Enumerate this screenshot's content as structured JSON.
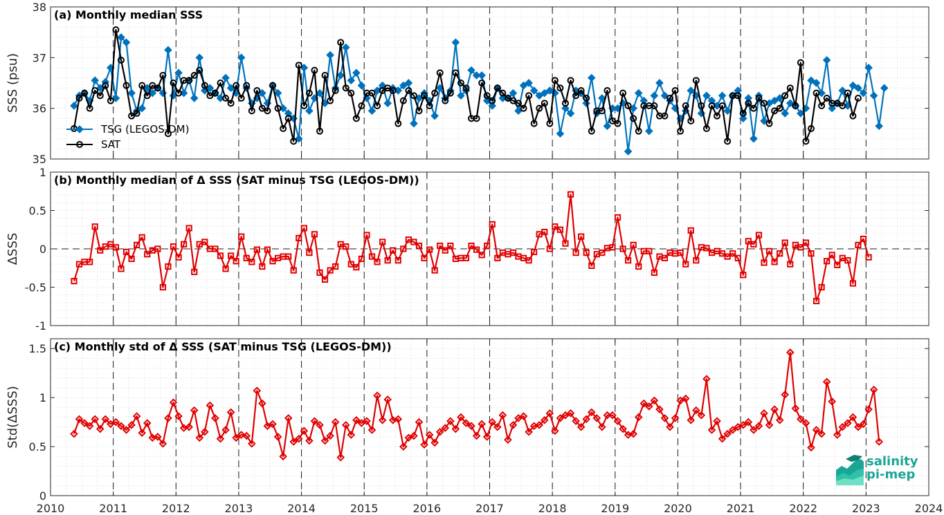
{
  "logo": {
    "line1": "salinity",
    "line2": "pi-mep"
  },
  "x_axis": {
    "ticks": [
      "2010",
      "2011",
      "2012",
      "2013",
      "2014",
      "2015",
      "2016",
      "2017",
      "2018",
      "2019",
      "2020",
      "2021",
      "2022",
      "2023",
      "2024"
    ]
  },
  "colors": {
    "tsg": "#0072BD",
    "sat": "#000000",
    "delta": "#E00000",
    "grid": "#d9d9d9"
  },
  "chart_data": [
    {
      "type": "line",
      "title": "(a) Monthly median SSS",
      "xlabel": "",
      "ylabel": "SSS (psu)",
      "xlim": [
        2010,
        2024
      ],
      "ylim": [
        35,
        38
      ],
      "yticks": [
        "35",
        "36",
        "37",
        "38"
      ],
      "legend_position": "left",
      "x_start": 2010.375,
      "x_step": 0.08333,
      "series": [
        {
          "name": "TSG (LEGOS-DM)",
          "marker": "diamond",
          "color": "#0072BD",
          "values": [
            36.05,
            36.25,
            36.3,
            36.15,
            36.55,
            36.4,
            36.52,
            36.8,
            36.2,
            37.4,
            37.3,
            36.3,
            35.95,
            36.0,
            36.4,
            36.3,
            36.4,
            36.3,
            37.15,
            36.25,
            36.7,
            36.3,
            36.55,
            36.2,
            37.0,
            36.35,
            36.4,
            36.3,
            36.2,
            36.6,
            36.4,
            36.3,
            37.0,
            36.4,
            36.1,
            36.2,
            36.3,
            36.1,
            36.45,
            36.3,
            36.0,
            35.9,
            35.8,
            35.4,
            36.8,
            35.95,
            36.2,
            36.3,
            36.1,
            37.05,
            36.4,
            36.65,
            37.2,
            36.55,
            36.7,
            36.45,
            36.2,
            35.95,
            36.35,
            36.45,
            36.1,
            36.4,
            36.35,
            36.45,
            36.5,
            35.7,
            36.2,
            36.3,
            36.15,
            35.85,
            36.4,
            36.2,
            36.35,
            37.3,
            36.25,
            36.35,
            36.75,
            36.65,
            36.65,
            36.15,
            36.05,
            36.4,
            36.2,
            36.2,
            36.3,
            35.95,
            36.45,
            36.5,
            36.35,
            36.25,
            36.3,
            36.35,
            36.3,
            35.5,
            36.0,
            35.9,
            36.35,
            36.3,
            36.1,
            36.6,
            35.9,
            36.2,
            35.65,
            36.0,
            36.0,
            36.1,
            35.15,
            36.0,
            36.3,
            36.15,
            35.55,
            36.25,
            36.5,
            36.25,
            36.15,
            36.0,
            35.8,
            35.95,
            36.35,
            36.25,
            35.9,
            36.25,
            36.15,
            36.05,
            36.25,
            35.95,
            36.25,
            36.35,
            35.8,
            36.2,
            35.4,
            36.25,
            35.75,
            36.1,
            36.15,
            36.2,
            35.9,
            36.1,
            36.05,
            35.9,
            36.0,
            36.55,
            36.5,
            36.3,
            36.95,
            36.0,
            36.1,
            36.35,
            36.05,
            36.45,
            36.4,
            36.3,
            36.8,
            36.25,
            35.65,
            36.4
          ]
        },
        {
          "name": "SAT",
          "marker": "circle",
          "color": "#000000",
          "values": [
            35.6,
            36.2,
            36.3,
            36.0,
            36.35,
            36.25,
            36.45,
            36.15,
            37.55,
            36.95,
            36.45,
            35.85,
            35.9,
            36.45,
            36.25,
            36.45,
            36.4,
            36.65,
            35.5,
            36.5,
            36.3,
            36.55,
            36.55,
            36.65,
            36.75,
            36.45,
            36.25,
            36.3,
            36.5,
            36.2,
            36.1,
            36.45,
            36.2,
            36.45,
            35.95,
            36.35,
            36.0,
            35.95,
            36.45,
            36.0,
            35.6,
            35.8,
            35.35,
            36.85,
            36.05,
            36.3,
            36.75,
            35.55,
            36.65,
            36.15,
            36.35,
            37.3,
            36.4,
            36.3,
            35.8,
            36.05,
            36.3,
            36.3,
            36.05,
            36.35,
            36.4,
            36.35,
            35.7,
            36.15,
            36.35,
            36.25,
            35.95,
            36.25,
            36.05,
            36.3,
            36.7,
            36.15,
            36.3,
            36.7,
            36.5,
            36.4,
            35.8,
            35.8,
            36.5,
            36.25,
            36.15,
            36.4,
            36.3,
            36.2,
            36.15,
            36.1,
            36.0,
            36.25,
            35.7,
            36.0,
            36.1,
            35.7,
            36.55,
            36.4,
            36.1,
            36.55,
            36.25,
            36.35,
            36.2,
            35.55,
            35.95,
            35.95,
            36.35,
            35.75,
            35.7,
            36.3,
            36.05,
            35.8,
            35.55,
            36.05,
            36.05,
            36.05,
            35.85,
            35.85,
            36.2,
            36.35,
            35.55,
            36.05,
            35.75,
            36.55,
            36.05,
            35.6,
            36.05,
            35.85,
            36.05,
            35.35,
            36.25,
            36.25,
            35.9,
            36.1,
            36.0,
            36.2,
            36.1,
            35.7,
            35.95,
            36.0,
            36.25,
            36.4,
            36.05,
            36.9,
            35.35,
            35.6,
            36.3,
            36.05,
            36.2,
            36.1,
            36.1,
            36.05,
            36.3,
            35.85,
            36.2
          ]
        }
      ]
    },
    {
      "type": "line",
      "title": "(b) Monthly median of Δ SSS (SAT minus TSG (LEGOS-DM))",
      "xlabel": "",
      "ylabel": "ΔSSS",
      "xlim": [
        2010,
        2024
      ],
      "ylim": [
        -1,
        1
      ],
      "yticks": [
        "-1",
        "-0.5",
        "0",
        "0.5",
        "1"
      ],
      "zero_line": true,
      "x_start": 2010.375,
      "x_step": 0.08333,
      "series": [
        {
          "marker": "square",
          "color": "#E00000",
          "values": [
            -0.42,
            -0.2,
            -0.17,
            -0.17,
            0.29,
            -0.02,
            0.03,
            0.06,
            0.02,
            -0.26,
            -0.04,
            -0.13,
            0.05,
            0.15,
            -0.07,
            -0.02,
            0.0,
            -0.5,
            -0.23,
            0.03,
            -0.11,
            0.06,
            0.27,
            -0.3,
            0.06,
            0.09,
            0.0,
            0.0,
            -0.09,
            -0.26,
            -0.09,
            -0.16,
            0.16,
            -0.12,
            -0.17,
            -0.01,
            -0.23,
            -0.01,
            -0.16,
            -0.12,
            -0.1,
            -0.1,
            -0.28,
            0.14,
            0.27,
            -0.05,
            0.19,
            -0.31,
            -0.4,
            -0.28,
            -0.23,
            0.06,
            0.03,
            -0.2,
            -0.24,
            -0.13,
            0.18,
            -0.1,
            -0.17,
            0.09,
            -0.15,
            -0.02,
            -0.15,
            0.0,
            0.12,
            0.09,
            0.04,
            -0.12,
            -0.01,
            -0.28,
            0.04,
            -0.02,
            0.04,
            -0.13,
            -0.12,
            -0.12,
            0.04,
            -0.01,
            -0.08,
            0.04,
            0.32,
            -0.12,
            -0.05,
            -0.07,
            -0.05,
            -0.1,
            -0.12,
            -0.15,
            -0.04,
            0.19,
            0.22,
            0.0,
            0.29,
            0.25,
            0.07,
            0.71,
            -0.05,
            0.16,
            -0.05,
            -0.22,
            -0.07,
            -0.05,
            0.01,
            0.02,
            0.41,
            0.0,
            -0.15,
            0.05,
            -0.23,
            -0.03,
            -0.03,
            -0.31,
            -0.1,
            -0.12,
            -0.05,
            -0.06,
            -0.05,
            -0.2,
            0.24,
            -0.15,
            0.02,
            0.01,
            -0.05,
            -0.03,
            -0.06,
            -0.1,
            -0.06,
            -0.12,
            -0.34,
            0.1,
            0.06,
            0.18,
            -0.18,
            -0.03,
            -0.17,
            -0.06,
            0.08,
            -0.2,
            0.05,
            0.02,
            0.08,
            -0.06,
            -0.68,
            -0.5,
            -0.16,
            -0.08,
            -0.21,
            -0.12,
            -0.15,
            -0.45,
            0.05,
            0.13,
            -0.11
          ]
        }
      ]
    },
    {
      "type": "line",
      "title": "(c) Monthly std of Δ SSS (SAT minus TSG (LEGOS-DM))",
      "xlabel": "",
      "ylabel": "Std(ΔSSS)",
      "xlim": [
        2010,
        2024
      ],
      "ylim": [
        0,
        1.6
      ],
      "yticks": [
        "0",
        "0.5",
        "1",
        "1.5"
      ],
      "x_start": 2010.375,
      "x_step": 0.08333,
      "series": [
        {
          "marker": "diamond",
          "color": "#E00000",
          "values": [
            0.63,
            0.78,
            0.74,
            0.71,
            0.78,
            0.68,
            0.78,
            0.73,
            0.75,
            0.71,
            0.67,
            0.72,
            0.81,
            0.64,
            0.74,
            0.59,
            0.6,
            0.53,
            0.79,
            0.95,
            0.81,
            0.69,
            0.7,
            0.87,
            0.59,
            0.65,
            0.92,
            0.79,
            0.58,
            0.67,
            0.85,
            0.59,
            0.62,
            0.61,
            0.53,
            1.07,
            0.94,
            0.71,
            0.73,
            0.6,
            0.4,
            0.79,
            0.55,
            0.58,
            0.66,
            0.56,
            0.76,
            0.72,
            0.56,
            0.61,
            0.75,
            0.39,
            0.72,
            0.62,
            0.77,
            0.74,
            0.76,
            0.67,
            1.02,
            0.77,
            0.98,
            0.77,
            0.78,
            0.5,
            0.59,
            0.61,
            0.75,
            0.52,
            0.62,
            0.54,
            0.65,
            0.69,
            0.76,
            0.68,
            0.8,
            0.74,
            0.71,
            0.61,
            0.73,
            0.6,
            0.75,
            0.7,
            0.82,
            0.57,
            0.72,
            0.79,
            0.81,
            0.65,
            0.71,
            0.72,
            0.77,
            0.84,
            0.66,
            0.79,
            0.82,
            0.84,
            0.76,
            0.7,
            0.78,
            0.85,
            0.79,
            0.7,
            0.82,
            0.82,
            0.76,
            0.68,
            0.62,
            0.63,
            0.8,
            0.94,
            0.91,
            0.97,
            0.88,
            0.79,
            0.7,
            0.79,
            0.97,
            0.99,
            0.77,
            0.87,
            0.82,
            1.19,
            0.67,
            0.76,
            0.58,
            0.63,
            0.67,
            0.7,
            0.72,
            0.75,
            0.67,
            0.71,
            0.84,
            0.72,
            0.88,
            0.77,
            1.03,
            1.46,
            0.89,
            0.78,
            0.74,
            0.49,
            0.67,
            0.63,
            1.16,
            0.96,
            0.62,
            0.7,
            0.74,
            0.8,
            0.7,
            0.73,
            0.88,
            1.08,
            0.55
          ]
        }
      ]
    }
  ]
}
